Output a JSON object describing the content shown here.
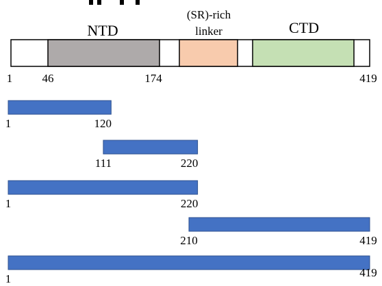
{
  "protein": {
    "start": 1,
    "end": 419,
    "domains": [
      {
        "id": "ntd",
        "label": "NTD",
        "start": 46,
        "end": 174,
        "color": "#aeaaaa"
      },
      {
        "id": "linker",
        "label_line1": "(SR)-rich",
        "label_line2": "linker",
        "start": 182,
        "end": 247,
        "color": "#f8cbad"
      },
      {
        "id": "ctd",
        "label": "CTD",
        "start": 255,
        "end": 365,
        "color": "#c5e0b4"
      }
    ],
    "ticks": {
      "start": "1",
      "ntd_start": "46",
      "ntd_end": "174",
      "end": "419"
    }
  },
  "fragments": [
    {
      "start": 1,
      "end": 120,
      "start_label": "1",
      "end_label": "120"
    },
    {
      "start": 111,
      "end": 220,
      "start_label": "111",
      "end_label": "220"
    },
    {
      "start": 1,
      "end": 220,
      "start_label": "1",
      "end_label": "220"
    },
    {
      "start": 210,
      "end": 419,
      "start_label": "210",
      "end_label": "419"
    },
    {
      "start": 1,
      "end": 419,
      "start_label": "1",
      "end_label": "419"
    }
  ],
  "colors": {
    "fragment_fill": "#4472c4",
    "fragment_stroke": "#2f528f"
  }
}
